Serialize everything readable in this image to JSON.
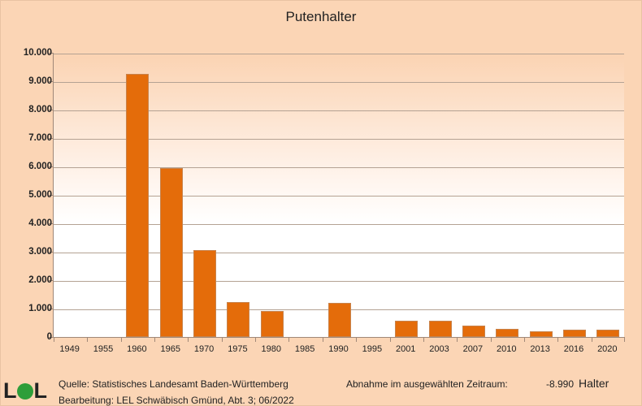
{
  "chart_data": {
    "type": "bar",
    "title": "Putenhalter",
    "xlabel": "",
    "ylabel": "",
    "ylim": [
      0,
      10000
    ],
    "yticks": [
      "0",
      "1.000",
      "2.000",
      "3.000",
      "4.000",
      "5.000",
      "6.000",
      "7.000",
      "8.000",
      "9.000",
      "10.000"
    ],
    "grid": true,
    "legend": null,
    "categories": [
      "1949",
      "1955",
      "1960",
      "1965",
      "1970",
      "1975",
      "1980",
      "1985",
      "1990",
      "1995",
      "2001",
      "2003",
      "2007",
      "2010",
      "2013",
      "2016",
      "2020"
    ],
    "values": [
      0,
      0,
      9260,
      5940,
      3060,
      1230,
      910,
      0,
      1200,
      0,
      570,
      570,
      400,
      290,
      200,
      260,
      270
    ],
    "bar_color": "#e46c0a"
  },
  "footer": {
    "logo": "LEL",
    "source": "Quelle: Statistisches Landesamt Baden-Württemberg",
    "editor": "Bearbeitung: LEL Schwäbisch Gmünd, Abt. 3; 06/2022",
    "change_label": "Abnahme im ausgewählten Zeitraum:",
    "change_value": "-8.990",
    "change_unit": "Halter"
  }
}
